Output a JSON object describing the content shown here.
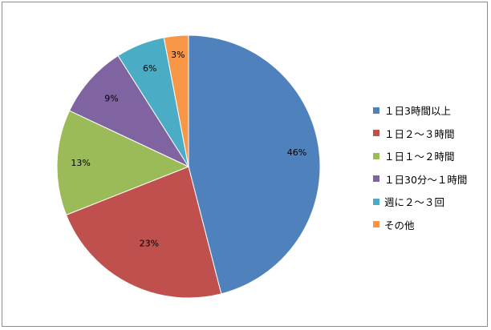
{
  "chart_data": {
    "type": "pie",
    "categories": [
      "１日3時間以上",
      "１日２～３時間",
      "１日１～２時間",
      "１日30分～１時間",
      "週に２～３回",
      "その他"
    ],
    "values": [
      46,
      23,
      13,
      9,
      6,
      3
    ],
    "value_labels": [
      "46%",
      "23%",
      "13%",
      "9%",
      "6%",
      "3%"
    ],
    "colors": [
      "#4f81bd",
      "#c0504d",
      "#9bbb59",
      "#8064a2",
      "#4bacc6",
      "#f79646"
    ],
    "start_angle_deg": 0,
    "direction": "clockwise",
    "legend_position": "right"
  }
}
